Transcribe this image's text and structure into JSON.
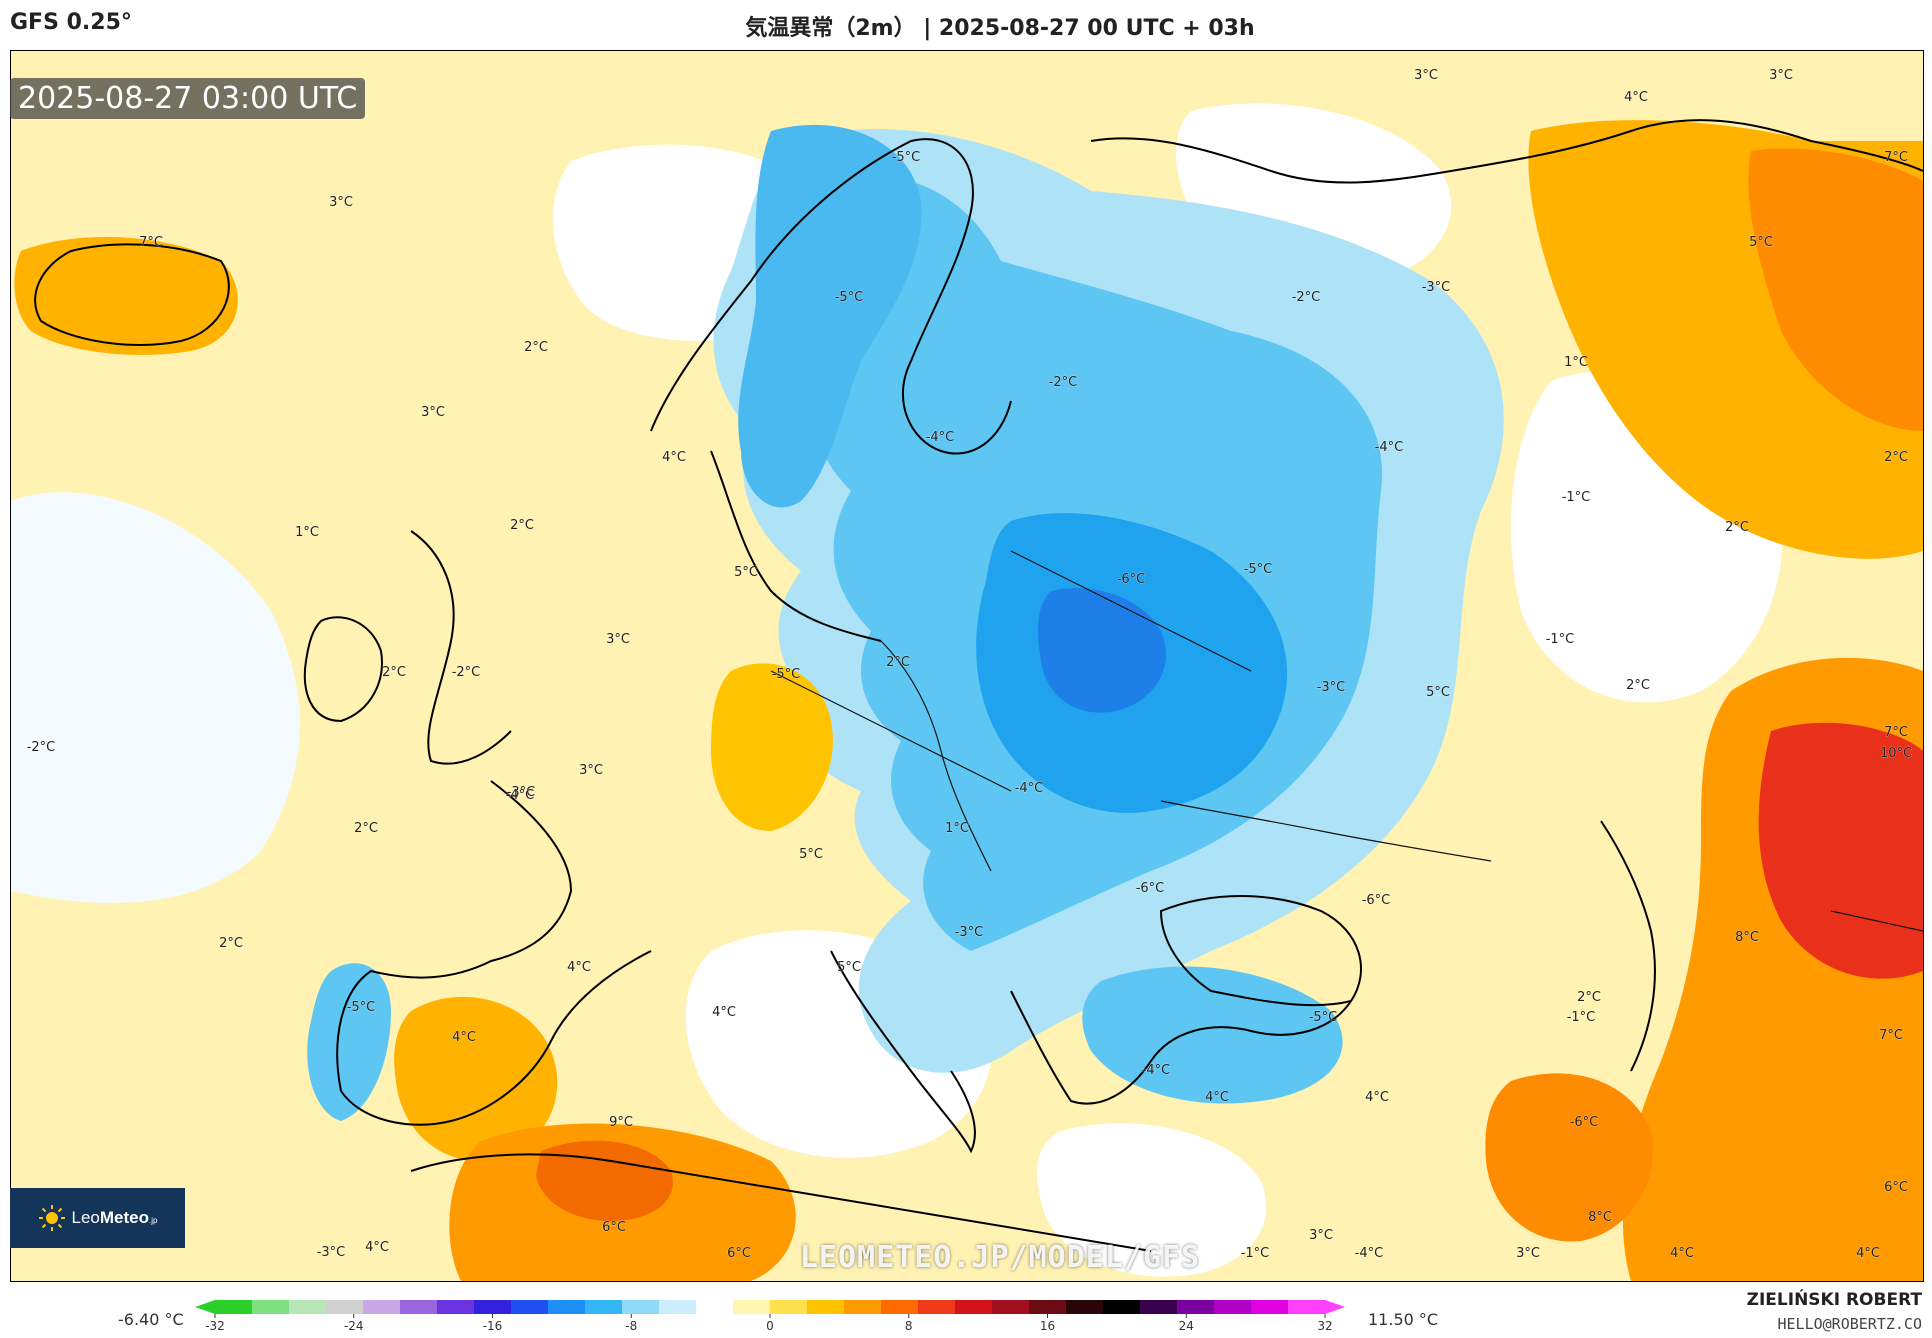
{
  "header": {
    "model": "GFS 0.25°",
    "title": "気温異常（2m） | 2025-08-27 00 UTC + 03h"
  },
  "map": {
    "timestamp": "2025-08-27 03:00 UTC",
    "watermark": "LEOMETEO.JP/MODEL/GFS",
    "labels": [
      {
        "text": "3°C"
      },
      {
        "text": "4°C"
      },
      {
        "text": "3°C"
      },
      {
        "text": "7°C"
      },
      {
        "text": "7°C"
      },
      {
        "text": "3°C"
      },
      {
        "text": "-5°C"
      },
      {
        "text": "5°C"
      },
      {
        "text": "-5°C"
      },
      {
        "text": "-2°C"
      },
      {
        "text": "-3°C"
      },
      {
        "text": "2°C"
      },
      {
        "text": "1°C"
      },
      {
        "text": "3°C"
      },
      {
        "text": "-2°C"
      },
      {
        "text": "4°C"
      },
      {
        "text": "-4°C"
      },
      {
        "text": "-4°C"
      },
      {
        "text": "2°C"
      },
      {
        "text": "1°C"
      },
      {
        "text": "2°C"
      },
      {
        "text": "-1°C"
      },
      {
        "text": "2°C"
      },
      {
        "text": "5°C"
      },
      {
        "text": "-6°C"
      },
      {
        "text": "-5°C"
      },
      {
        "text": "3°C"
      },
      {
        "text": "2°C"
      },
      {
        "text": "-1°C"
      },
      {
        "text": "2°C"
      },
      {
        "text": "-2°C"
      },
      {
        "text": "7°C"
      },
      {
        "text": "-5°C"
      },
      {
        "text": "-3°C"
      },
      {
        "text": "2°C"
      },
      {
        "text": "-2°C"
      },
      {
        "text": "-3°C"
      },
      {
        "text": "5°C"
      },
      {
        "text": "3°C"
      },
      {
        "text": "-4°C"
      },
      {
        "text": "10°C"
      },
      {
        "text": "2°C"
      },
      {
        "text": "1°C"
      },
      {
        "text": "-4°C"
      },
      {
        "text": "5°C"
      },
      {
        "text": "-6°C"
      },
      {
        "text": "-6°C"
      },
      {
        "text": "2°C"
      },
      {
        "text": "-3°C"
      },
      {
        "text": "8°C"
      },
      {
        "text": "4°C"
      },
      {
        "text": "2°C"
      },
      {
        "text": "-5°C"
      },
      {
        "text": "5°C"
      },
      {
        "text": "-1°C"
      },
      {
        "text": "4°C"
      },
      {
        "text": "-5°C"
      },
      {
        "text": "7°C"
      },
      {
        "text": "4°C"
      },
      {
        "text": "-4°C"
      },
      {
        "text": "4°C"
      },
      {
        "text": "4°C"
      },
      {
        "text": "9°C"
      },
      {
        "text": "-6°C"
      },
      {
        "text": "6°C"
      },
      {
        "text": "8°C"
      },
      {
        "text": "3°C"
      },
      {
        "text": "6°C"
      },
      {
        "text": "-3°C"
      },
      {
        "text": "4°C"
      },
      {
        "text": "6°C"
      },
      {
        "text": "-1°C"
      },
      {
        "text": "-4°C"
      },
      {
        "text": "3°C"
      },
      {
        "text": "4°C"
      },
      {
        "text": "4°C"
      }
    ]
  },
  "colorbar": {
    "min_label": "-6.40 °C",
    "max_label": "11.50 °C",
    "ticks": [
      "-32",
      "-24",
      "-16",
      "-8",
      "0",
      "8",
      "16",
      "24",
      "32"
    ],
    "colors": [
      "#2bd02b",
      "#7fe07f",
      "#b9e6b9",
      "#d0d0d0",
      "#c8a8e8",
      "#9a66e0",
      "#6a33e0",
      "#3322dd",
      "#1f4ff0",
      "#1e8ff5",
      "#33b6f5",
      "#8fd8f8",
      "#cdeefc",
      "#ffffff",
      "#fff5b0",
      "#ffe04d",
      "#ffc400",
      "#ff9a00",
      "#ff6a00",
      "#f13a1a",
      "#d2141a",
      "#a20f1c",
      "#6b0b14",
      "#2a0508",
      "#000000",
      "#3a0050",
      "#7a00a0",
      "#b000c8",
      "#e000e0",
      "#ff40ff"
    ]
  },
  "credits": {
    "name": "ZIELIŃSKI ROBERT",
    "email": "HELLO@ROBERTZ.CO"
  },
  "logo": {
    "text_light": "Leo",
    "text_bold": "Meteo",
    "suffix": ".jp"
  }
}
